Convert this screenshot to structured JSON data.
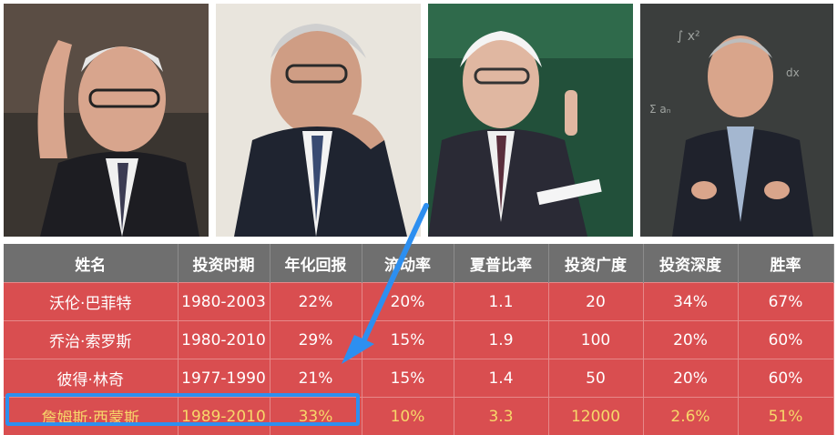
{
  "table": {
    "headers": [
      "姓名",
      "投资时期",
      "年化回报",
      "流动率",
      "夏普比率",
      "投资广度",
      "投资深度",
      "胜率"
    ],
    "rows": [
      [
        "沃伦·巴菲特",
        "1980-2003",
        "22%",
        "20%",
        "1.1",
        "20",
        "34%",
        "67%"
      ],
      [
        "乔治·索罗斯",
        "1980-2010",
        "29%",
        "15%",
        "1.9",
        "100",
        "20%",
        "60%"
      ],
      [
        "彼得·林奇",
        "1977-1990",
        "21%",
        "15%",
        "1.4",
        "50",
        "20%",
        "60%"
      ],
      [
        "詹姆斯·西蒙斯",
        "1989-2010",
        "33%",
        "10%",
        "3.3",
        "12000",
        "2.6%",
        "51%"
      ]
    ]
  },
  "colors": {
    "header_bg": "#6f6f6f",
    "row_bg": "#d94e50",
    "highlight_text": "#f7d86a",
    "annotation_blue": "#2d8ff0"
  }
}
